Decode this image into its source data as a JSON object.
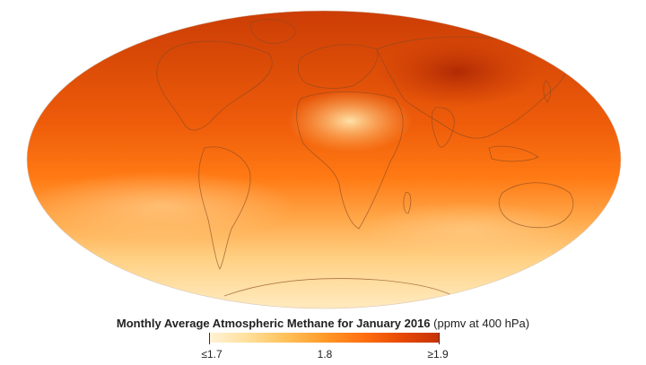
{
  "title": "Monthly Average Atmospheric Methane for January 2016",
  "units": "(ppmv at 400 hPa)",
  "colorbar": {
    "stops": [
      "#fff3d6",
      "#ffdf9a",
      "#ffc15a",
      "#ff9a2a",
      "#ff6f10",
      "#e84a06",
      "#c63205"
    ],
    "ticks": [
      {
        "label": "≤1.7",
        "value": 1.7
      },
      {
        "label": "1.8",
        "value": 1.8
      },
      {
        "label": "≥1.9",
        "value": 1.9
      }
    ]
  },
  "map": {
    "projection": "mollweide",
    "ocean_land_outline_color": "#8a4a22"
  }
}
